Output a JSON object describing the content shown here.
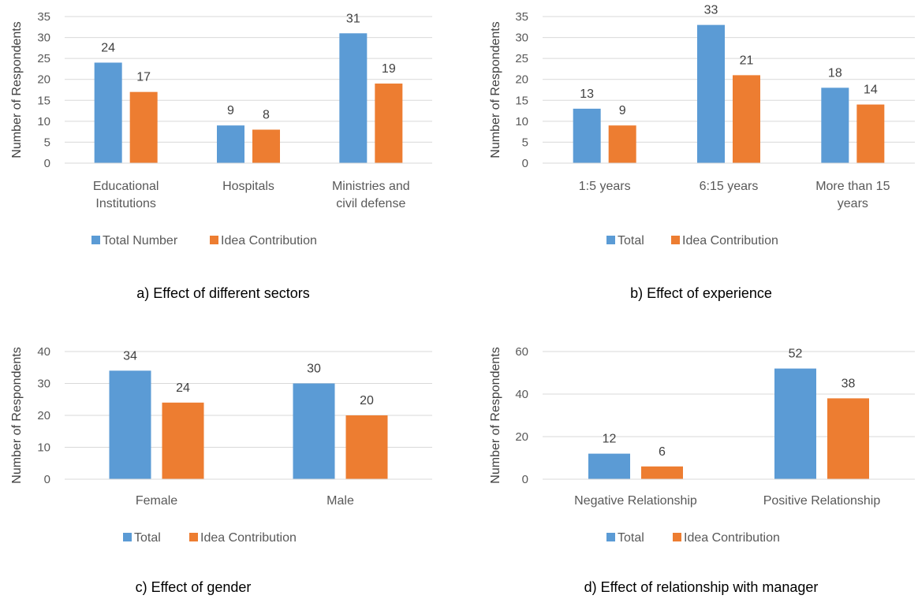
{
  "colors": {
    "total": "#5B9BD5",
    "idea": "#ED7D31",
    "grid": "#D9D9D9",
    "text": "#595959"
  },
  "chart_data": [
    {
      "type": "bar",
      "caption": "a) Effect of different sectors",
      "ylabel": "Number of Respondents",
      "xlabel": "",
      "categories": [
        [
          "Educational",
          "Institutions"
        ],
        [
          "Hospitals"
        ],
        [
          "Ministries and",
          "civil defense"
        ]
      ],
      "series": [
        {
          "name": "Total Number",
          "values": [
            24,
            9,
            31
          ]
        },
        {
          "name": "Idea Contribution",
          "values": [
            17,
            8,
            19
          ]
        }
      ],
      "ylim": [
        0,
        35
      ],
      "yticks": [
        0,
        5,
        10,
        15,
        20,
        25,
        30,
        35
      ],
      "grid": true,
      "legend": "bottom"
    },
    {
      "type": "bar",
      "caption": "b) Effect of experience",
      "ylabel": "Number of Respondents",
      "xlabel": "",
      "categories": [
        [
          "1:5 years"
        ],
        [
          "6:15 years"
        ],
        [
          "More than 15",
          "years"
        ]
      ],
      "series": [
        {
          "name": "Total",
          "values": [
            13,
            33,
            18
          ]
        },
        {
          "name": "Idea Contribution",
          "values": [
            9,
            21,
            14
          ]
        }
      ],
      "ylim": [
        0,
        35
      ],
      "yticks": [
        0,
        5,
        10,
        15,
        20,
        25,
        30,
        35
      ],
      "grid": true,
      "legend": "bottom"
    },
    {
      "type": "bar",
      "caption": "c) Effect of gender",
      "ylabel": "Number of Respondents",
      "xlabel": "",
      "categories": [
        [
          "Female"
        ],
        [
          "Male"
        ]
      ],
      "series": [
        {
          "name": "Total",
          "values": [
            34,
            30
          ]
        },
        {
          "name": "Idea Contribution",
          "values": [
            24,
            20
          ]
        }
      ],
      "ylim": [
        0,
        40
      ],
      "yticks": [
        0,
        10,
        20,
        30,
        40
      ],
      "grid": true,
      "legend": "bottom"
    },
    {
      "type": "bar",
      "caption": "d) Effect of relationship with manager",
      "ylabel": "Number of Respondents",
      "xlabel": "",
      "categories": [
        [
          "Negative Relationship"
        ],
        [
          "Positive Relationship"
        ]
      ],
      "series": [
        {
          "name": "Total",
          "values": [
            12,
            52
          ]
        },
        {
          "name": "Idea Contribution",
          "values": [
            6,
            38
          ]
        }
      ],
      "ylim": [
        0,
        60
      ],
      "yticks": [
        0,
        20,
        40,
        60
      ],
      "grid": true,
      "legend": "bottom"
    }
  ]
}
